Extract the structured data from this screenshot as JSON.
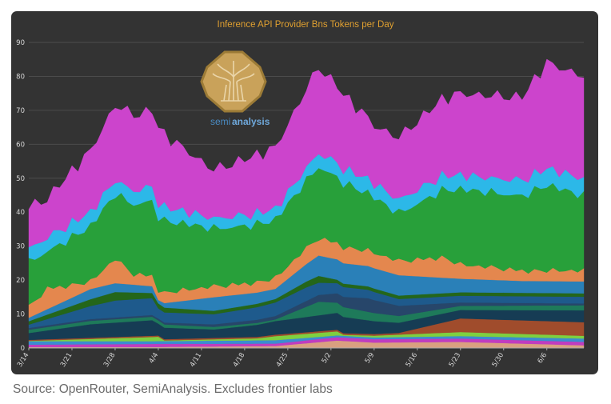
{
  "caption": "Source: OpenRouter, SemiAnalysis. Excludes frontier labs",
  "colors": {
    "panel_bg": "#333333",
    "title": "#e0a030",
    "grid": "#4c4c4c",
    "axis": "#aaaaaa",
    "logo_gold": "#c9a25a",
    "logo_text": "#4a8cc4"
  },
  "logo": {
    "text_semi": "semi",
    "text_analysis": "analysis"
  },
  "chart_data": {
    "type": "area",
    "stacked": true,
    "title": "Inference API Provider Bns Tokens per Day",
    "xlabel": "",
    "ylabel": "",
    "ylim": [
      0,
      90
    ],
    "yticks": [
      0,
      10,
      20,
      30,
      40,
      50,
      60,
      70,
      80,
      90
    ],
    "grid": true,
    "legend": "none",
    "x_start": "3/14",
    "x_end": "6/12",
    "xticks": [
      "3/14",
      "3/21",
      "3/28",
      "4/4",
      "4/11",
      "4/18",
      "4/25",
      "5/2",
      "5/9",
      "5/16",
      "5/23",
      "5/30",
      "6/6"
    ],
    "series": [
      {
        "color": "#d9a080",
        "values": [
          [
            0,
            0.3
          ],
          [
            20,
            0.3
          ],
          [
            40,
            0.6
          ],
          [
            50,
            2.2
          ],
          [
            56,
            1.6
          ],
          [
            70,
            1.8
          ],
          [
            90,
            0.8
          ]
        ]
      },
      {
        "color": "#c03cc0",
        "values": [
          [
            0,
            0.7
          ],
          [
            21,
            0.9
          ],
          [
            40,
            0.7
          ],
          [
            50,
            1
          ],
          [
            56,
            1
          ],
          [
            90,
            1
          ]
        ]
      },
      {
        "color": "#3c8cd0",
        "values": [
          [
            0,
            1
          ],
          [
            21,
            0.8
          ],
          [
            40,
            1
          ],
          [
            50,
            0.5
          ],
          [
            56,
            0.5
          ],
          [
            90,
            1
          ]
        ]
      },
      {
        "color": "#7ed040",
        "values": [
          [
            0,
            0.1
          ],
          [
            21,
            1.3
          ],
          [
            22,
            0.2
          ],
          [
            37,
            0.6
          ],
          [
            40,
            1.2
          ],
          [
            50,
            1.2
          ],
          [
            51,
            0.3
          ],
          [
            70,
            1.2
          ],
          [
            90,
            0.8
          ]
        ]
      },
      {
        "color": "#a04c2c",
        "values": [
          [
            0,
            0.3
          ],
          [
            60,
            0.5
          ],
          [
            70,
            4
          ],
          [
            90,
            4
          ]
        ]
      },
      {
        "color": "#163c54",
        "values": [
          [
            0,
            2
          ],
          [
            10,
            4
          ],
          [
            20,
            4.6
          ],
          [
            21,
            3.5
          ],
          [
            30,
            2.5
          ],
          [
            40,
            4
          ],
          [
            50,
            5
          ],
          [
            60,
            3
          ],
          [
            70,
            2.5
          ],
          [
            90,
            3.5
          ]
        ]
      },
      {
        "color": "#1e7a5a",
        "values": [
          [
            0,
            1
          ],
          [
            20,
            1
          ],
          [
            40,
            0.5
          ],
          [
            47,
            4
          ],
          [
            50,
            3
          ],
          [
            60,
            2
          ],
          [
            70,
            1.2
          ],
          [
            90,
            1.5
          ]
        ]
      },
      {
        "color": "#27466a",
        "values": [
          [
            0,
            0.5
          ],
          [
            20,
            0.5
          ],
          [
            40,
            1
          ],
          [
            47,
            2
          ],
          [
            55,
            4
          ],
          [
            70,
            1
          ],
          [
            90,
            0.5
          ]
        ]
      },
      {
        "color": "#1e5a8c",
        "values": [
          [
            0,
            1
          ],
          [
            14,
            5
          ],
          [
            20,
            5
          ],
          [
            21,
            3
          ],
          [
            30,
            3
          ],
          [
            40,
            4
          ],
          [
            45,
            4
          ],
          [
            50,
            3
          ],
          [
            60,
            2
          ],
          [
            70,
            2
          ],
          [
            90,
            2
          ]
        ]
      },
      {
        "color": "#24661a",
        "values": [
          [
            0,
            1
          ],
          [
            10,
            2
          ],
          [
            14,
            2.5
          ],
          [
            20,
            1.5
          ],
          [
            30,
            1
          ],
          [
            40,
            1
          ],
          [
            47,
            2
          ],
          [
            50,
            1
          ],
          [
            60,
            1
          ],
          [
            70,
            1
          ],
          [
            83,
            1
          ],
          [
            90,
            1
          ]
        ]
      },
      {
        "color": "#2a80b8",
        "values": [
          [
            0,
            1
          ],
          [
            10,
            3
          ],
          [
            20,
            2
          ],
          [
            21,
            1
          ],
          [
            30,
            4
          ],
          [
            40,
            3
          ],
          [
            47,
            6
          ],
          [
            60,
            6
          ],
          [
            70,
            4
          ],
          [
            80,
            3.5
          ],
          [
            90,
            3.5
          ]
        ]
      },
      {
        "color": "#e4874e",
        "values": [
          [
            0,
            3
          ],
          [
            3,
            6
          ],
          [
            10,
            2
          ],
          [
            14,
            7
          ],
          [
            17,
            3
          ],
          [
            20,
            3
          ],
          [
            30,
            3
          ],
          [
            40,
            3
          ],
          [
            47,
            5
          ],
          [
            60,
            4
          ],
          [
            67,
            6
          ],
          [
            70,
            4
          ],
          [
            80,
            3
          ],
          [
            90,
            3
          ]
        ]
      },
      {
        "color": "#28a03a",
        "values": [
          [
            0,
            13
          ],
          [
            3,
            11
          ],
          [
            14,
            19
          ],
          [
            20,
            22
          ],
          [
            30,
            17
          ],
          [
            40,
            17
          ],
          [
            47,
            21
          ],
          [
            60,
            14
          ],
          [
            70,
            22
          ],
          [
            80,
            22
          ],
          [
            84,
            25
          ],
          [
            90,
            22
          ]
        ]
      },
      {
        "color": "#2cb8e8",
        "values": [
          [
            0,
            4
          ],
          [
            3,
            4
          ],
          [
            14,
            4
          ],
          [
            20,
            4
          ],
          [
            30,
            3
          ],
          [
            40,
            3
          ],
          [
            47,
            4
          ],
          [
            60,
            4
          ],
          [
            70,
            4
          ],
          [
            90,
            5
          ]
        ]
      },
      {
        "color": "#cc44cc",
        "values": [
          [
            0,
            12
          ],
          [
            3,
            11
          ],
          [
            14,
            22
          ],
          [
            20,
            22
          ],
          [
            21,
            22
          ],
          [
            30,
            14
          ],
          [
            40,
            18
          ],
          [
            47,
            25
          ],
          [
            56,
            17
          ],
          [
            60,
            18
          ],
          [
            70,
            24
          ],
          [
            80,
            24
          ],
          [
            84,
            31
          ],
          [
            90,
            30
          ]
        ]
      }
    ]
  }
}
